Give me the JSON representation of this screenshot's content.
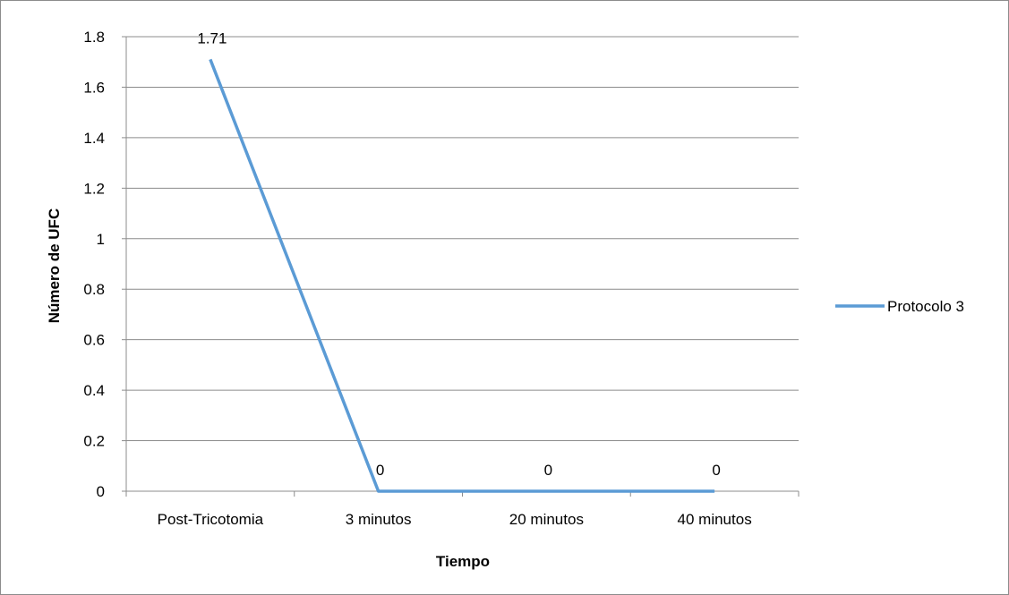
{
  "chart_data": {
    "type": "line",
    "categories": [
      "Post-Tricotomia",
      "3 minutos",
      "20 minutos",
      "40 minutos"
    ],
    "series": [
      {
        "name": "Protocolo 3",
        "values": [
          1.71,
          0,
          0,
          0
        ],
        "color": "#5b9bd5"
      }
    ],
    "data_labels": [
      "1.71",
      "0",
      "0",
      "0"
    ],
    "xlabel": "Tiempo",
    "ylabel": "Número de UFC",
    "ylim": [
      0,
      1.8
    ],
    "yticks": [
      0,
      0.2,
      0.4,
      0.6,
      0.8,
      1,
      1.2,
      1.4,
      1.6,
      1.8
    ],
    "ytick_labels": [
      "0",
      "0.2",
      "0.4",
      "0.6",
      "0.8",
      "1",
      "1.2",
      "1.4",
      "1.6",
      "1.8"
    ],
    "grid": true,
    "legend_position": "right",
    "colors": {
      "gridline": "#8c8c8c",
      "axis": "#8c8c8c",
      "frame": "#8c8c8c"
    }
  }
}
